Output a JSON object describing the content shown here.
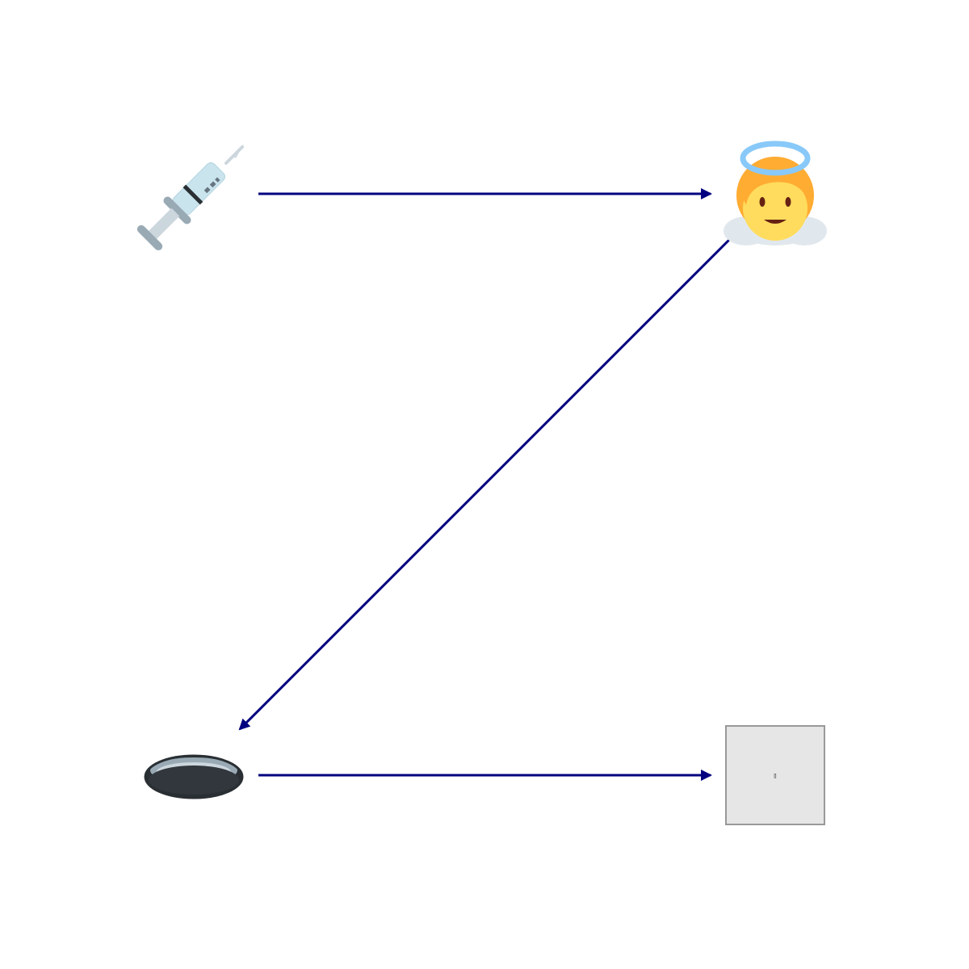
{
  "diagram": {
    "type": "flow",
    "nodes": [
      {
        "id": "syringe",
        "icon": "syringe-icon"
      },
      {
        "id": "angel",
        "icon": "baby-angel-icon"
      },
      {
        "id": "hole",
        "icon": "hole-icon"
      },
      {
        "id": "missing",
        "icon": "missing-glyph-box",
        "glyph": "▯"
      }
    ],
    "edges": [
      {
        "from": "syringe",
        "to": "angel"
      },
      {
        "from": "angel",
        "to": "hole"
      },
      {
        "from": "hole",
        "to": "missing"
      }
    ],
    "colors": {
      "arrow": "#000080",
      "background": "#ffffff",
      "placeholder_fill": "#e6e6e6",
      "placeholder_stroke": "#999999"
    }
  }
}
